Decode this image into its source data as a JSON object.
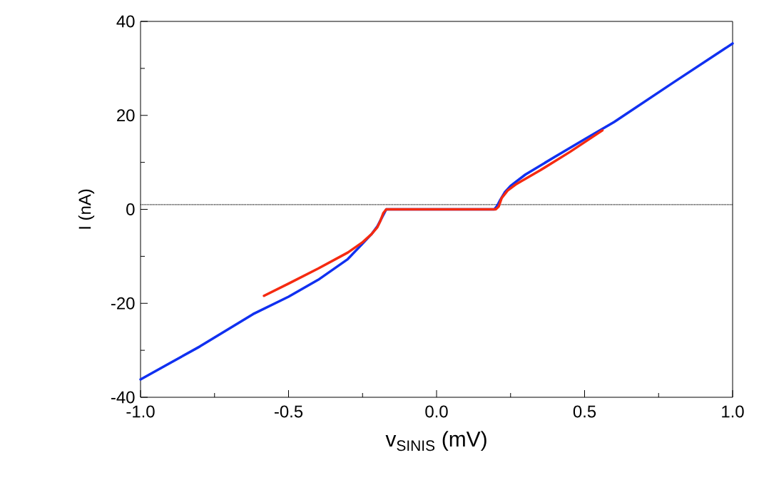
{
  "chart_data": {
    "type": "line",
    "xlabel": "v$_{SINIS}$ (mV)",
    "ylabel": "I (nA)",
    "xlim": [
      -1.0,
      1.0
    ],
    "ylim": [
      -40,
      40
    ],
    "xticks": [
      {
        "value": -1.0,
        "label": "-1.0"
      },
      {
        "value": -0.5,
        "label": "-0.5"
      },
      {
        "value": 0,
        "label": "0.0"
      },
      {
        "value": 0.5,
        "label": "0.5"
      },
      {
        "value": 1.0,
        "label": "1.0"
      }
    ],
    "yticks": [
      -40,
      -20,
      0,
      20,
      40
    ],
    "marker": "none",
    "line_style": "solid",
    "ref_lines": [
      {
        "axis": "y",
        "value": 1,
        "line_style": "dotted",
        "color": "#000000"
      }
    ],
    "series": [
      {
        "color": "#1030f0",
        "x": [
          -1.0,
          -0.8,
          -0.62,
          -0.5,
          -0.4,
          -0.3,
          -0.25,
          -0.22,
          -0.2,
          -0.185,
          -0.175,
          -0.17,
          0.0,
          0.195,
          0.205,
          0.215,
          0.23,
          0.25,
          0.3,
          0.4,
          0.5,
          0.6,
          0.8,
          1.0
        ],
        "values": [
          -36.2,
          -29.2,
          -22.3,
          -18.6,
          -15.0,
          -10.6,
          -7.3,
          -5.3,
          -3.6,
          -1.8,
          -0.6,
          0,
          0,
          0,
          0.8,
          2.0,
          3.6,
          5.0,
          7.4,
          11.2,
          14.9,
          18.6,
          27.0,
          35.3
        ]
      },
      {
        "color": "#f52a10",
        "x": [
          -0.583,
          -0.5,
          -0.4,
          -0.3,
          -0.25,
          -0.22,
          -0.2,
          -0.19,
          -0.18,
          -0.17,
          0.0,
          0.2,
          0.21,
          0.22,
          0.24,
          0.27,
          0.3,
          0.35,
          0.45,
          0.56
        ],
        "values": [
          -18.4,
          -15.8,
          -12.6,
          -9.2,
          -7.0,
          -5.3,
          -3.8,
          -2.5,
          -0.8,
          0,
          0,
          0,
          0.6,
          2.4,
          4.0,
          5.4,
          6.5,
          8.3,
          12.2,
          16.8
        ]
      }
    ]
  }
}
